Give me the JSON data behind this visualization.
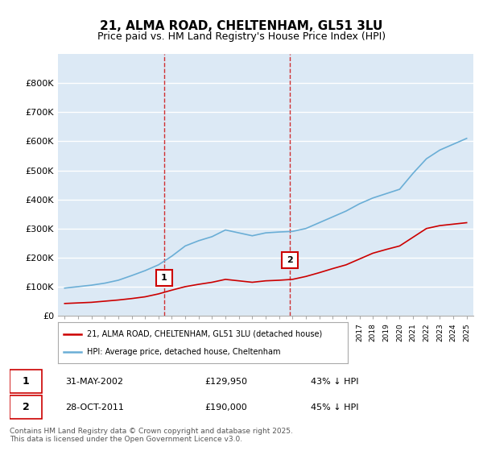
{
  "title": "21, ALMA ROAD, CHELTENHAM, GL51 3LU",
  "subtitle": "Price paid vs. HM Land Registry's House Price Index (HPI)",
  "ylabel": "",
  "background_color": "#ffffff",
  "plot_bg_color": "#dce9f5",
  "grid_color": "#ffffff",
  "hpi_color": "#6aaed6",
  "price_color": "#cc0000",
  "marker1_date_idx": 7.4,
  "marker2_date_idx": 16.5,
  "marker1_label": "1",
  "marker2_label": "2",
  "annotation1": "31-MAY-2002    £129,950       43% ↓ HPI",
  "annotation2": "28-OCT-2011    £190,000       45% ↓ HPI",
  "legend_label1": "21, ALMA ROAD, CHELTENHAM, GL51 3LU (detached house)",
  "legend_label2": "HPI: Average price, detached house, Cheltenham",
  "footer": "Contains HM Land Registry data © Crown copyright and database right 2025.\nThis data is licensed under the Open Government Licence v3.0.",
  "ylim": [
    0,
    900000
  ],
  "yticks": [
    0,
    100000,
    200000,
    300000,
    400000,
    500000,
    600000,
    700000,
    800000
  ],
  "ytick_labels": [
    "£0",
    "£100K",
    "£200K",
    "£300K",
    "£400K",
    "£500K",
    "£600K",
    "£700K",
    "£800K"
  ],
  "years": [
    1995,
    1996,
    1997,
    1998,
    1999,
    2000,
    2001,
    2002,
    2003,
    2004,
    2005,
    2006,
    2007,
    2008,
    2009,
    2010,
    2011,
    2012,
    2013,
    2014,
    2015,
    2016,
    2017,
    2018,
    2019,
    2020,
    2021,
    2022,
    2023,
    2024,
    2025
  ],
  "hpi_values": [
    95000,
    100000,
    105000,
    112000,
    122000,
    138000,
    155000,
    175000,
    205000,
    240000,
    258000,
    272000,
    295000,
    285000,
    275000,
    285000,
    288000,
    290000,
    300000,
    320000,
    340000,
    360000,
    385000,
    405000,
    420000,
    435000,
    490000,
    540000,
    570000,
    590000,
    610000
  ],
  "price_values": [
    42000,
    44000,
    46000,
    50000,
    54000,
    59000,
    65000,
    75000,
    88000,
    100000,
    108000,
    115000,
    125000,
    120000,
    115000,
    120000,
    122000,
    125000,
    135000,
    148000,
    162000,
    175000,
    195000,
    215000,
    228000,
    240000,
    270000,
    300000,
    310000,
    315000,
    320000
  ],
  "sale1_year": 2002.41,
  "sale1_price": 129950,
  "sale2_year": 2011.83,
  "sale2_price": 190000,
  "vline1_year": 2002.41,
  "vline2_year": 2011.83
}
